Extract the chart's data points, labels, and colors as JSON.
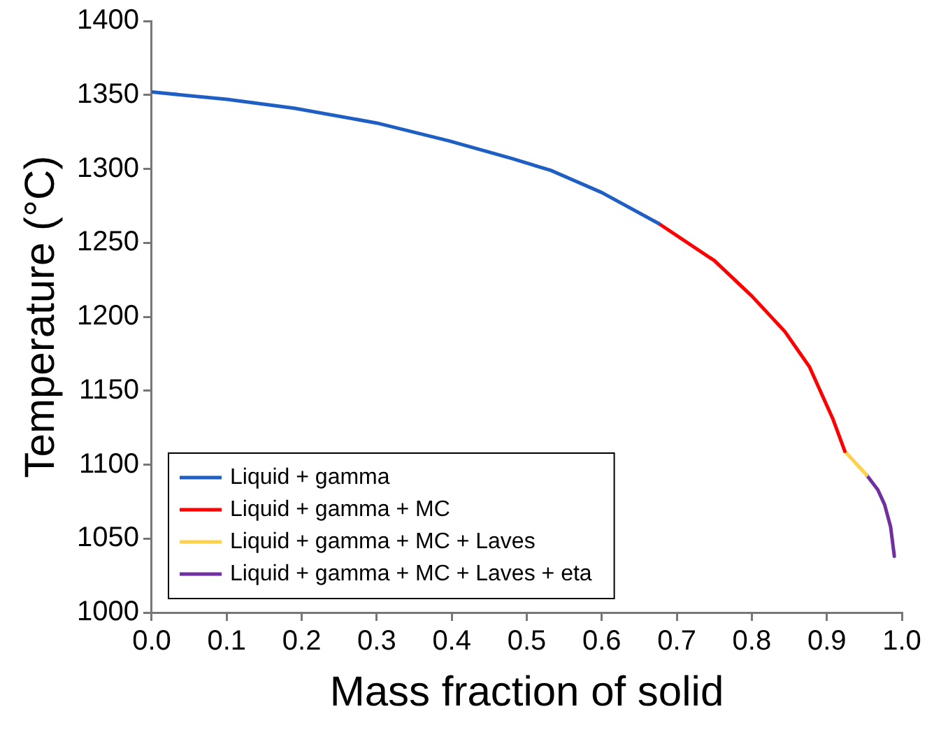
{
  "chart_data": {
    "type": "line",
    "xlabel": "Mass fraction of solid",
    "ylabel": "Temperature (°C)",
    "xlim": [
      0,
      1
    ],
    "xticks": [
      {
        "value": 0,
        "label": "0.0"
      },
      {
        "value": 0.1,
        "label": "0.1"
      },
      {
        "value": 0.2,
        "label": "0.2"
      },
      {
        "value": 0.3,
        "label": "0.3"
      },
      {
        "value": 0.4,
        "label": "0.4"
      },
      {
        "value": 0.5,
        "label": "0.5"
      },
      {
        "value": 0.6,
        "label": "0.6"
      },
      {
        "value": 0.7,
        "label": "0.7"
      },
      {
        "value": 0.8,
        "label": "0.8"
      },
      {
        "value": 0.9,
        "label": "0.9"
      },
      {
        "value": 1,
        "label": "1.0"
      }
    ],
    "ylim": [
      1000,
      1400
    ],
    "yticks": [
      1000,
      1050,
      1100,
      1150,
      1200,
      1250,
      1300,
      1350,
      1400
    ],
    "grid": false,
    "legend": "bottom left",
    "marker": "none",
    "line_style": "solid",
    "series": [
      {
        "name": "Liquid + gamma",
        "color": "#1f5fc4",
        "x": [
          0,
          0.1,
          0.19,
          0.3,
          0.396,
          0.48,
          0.532,
          0.6,
          0.676
        ],
        "values": [
          1352,
          1347,
          1341,
          1331,
          1319,
          1307,
          1299,
          1284,
          1263
        ]
      },
      {
        "name": "Liquid + gamma + MC",
        "color": "#ff0000",
        "x": [
          0.676,
          0.75,
          0.8,
          0.844,
          0.877,
          0.908,
          0.924
        ],
        "values": [
          1263,
          1238,
          1214,
          1190,
          1166,
          1131,
          1109
        ]
      },
      {
        "name": "Liquid + gamma + MC + Laves",
        "color": "#ffd04a",
        "x": [
          0.924,
          0.953
        ],
        "values": [
          1109,
          1093
        ]
      },
      {
        "name": "Liquid + gamma + MC + Laves + eta",
        "color": "#7030a0",
        "x": [
          0.953,
          0.968,
          0.977,
          0.985,
          0.99
        ],
        "values": [
          1093,
          1083,
          1073,
          1058,
          1038
        ]
      }
    ]
  }
}
